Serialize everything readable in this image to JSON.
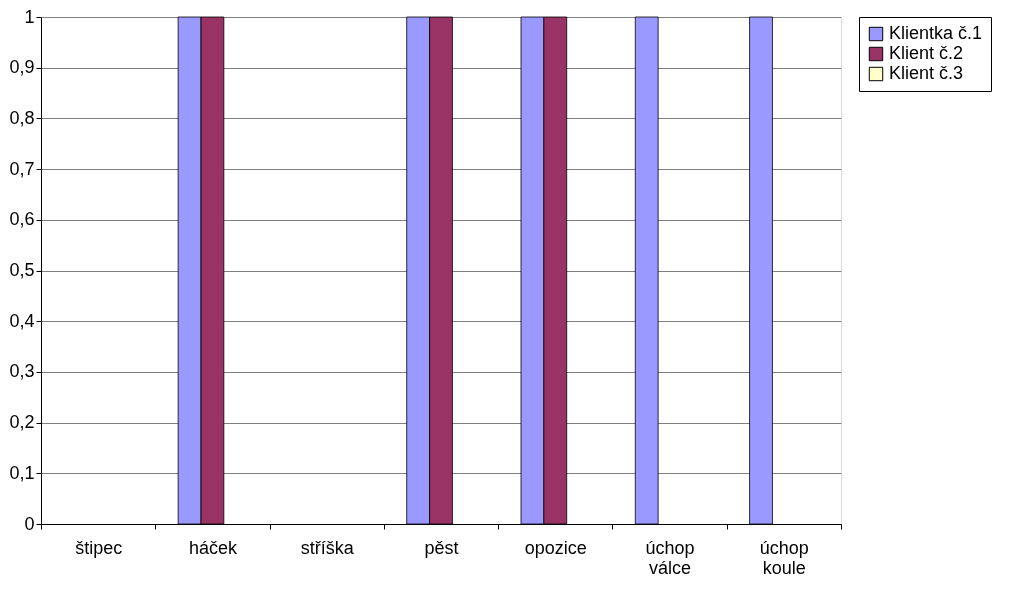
{
  "chart_data": {
    "type": "bar",
    "categories": [
      "štipec",
      "háček",
      "stříška",
      "pěst",
      "opozice",
      "úchop válce",
      "úchop koule"
    ],
    "series": [
      {
        "name": "Klientka č.1",
        "color": "#9999ff",
        "values": [
          0,
          1,
          0,
          1,
          1,
          1,
          1
        ]
      },
      {
        "name": "Klient č.2",
        "color": "#993366",
        "values": [
          0,
          1,
          0,
          1,
          1,
          0,
          0
        ]
      },
      {
        "name": "Klient č.3",
        "color": "#ffffcc",
        "values": [
          0,
          0,
          0,
          0,
          0,
          0,
          0
        ]
      }
    ],
    "ylim": [
      0,
      1
    ],
    "yticks": [
      0,
      {
        "value": 0.1,
        "label": "0,1"
      },
      {
        "value": 0.2,
        "label": "0,2"
      },
      {
        "value": 0.3,
        "label": "0,3"
      },
      {
        "value": 0.4,
        "label": "0,4"
      },
      {
        "value": 0.5,
        "label": "0,5"
      },
      {
        "value": 0.6,
        "label": "0,6"
      },
      {
        "value": 0.7,
        "label": "0,7"
      },
      {
        "value": 0.8,
        "label": "0,8"
      },
      {
        "value": 0.9,
        "label": "0,9"
      },
      1
    ],
    "grid": "y",
    "legend": "right"
  }
}
